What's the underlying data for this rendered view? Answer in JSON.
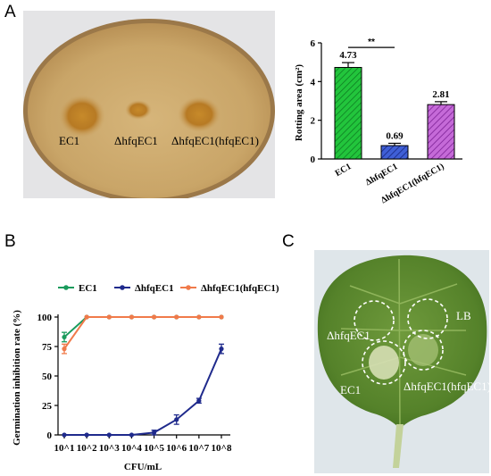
{
  "panels": {
    "a": "A",
    "b": "B",
    "c": "C"
  },
  "potato_labels": {
    "l1": "EC1",
    "l2": "ΔhfqEC1",
    "l3": "ΔhfqEC1(hfqEC1)"
  },
  "leaf_labels": {
    "lb": "LB",
    "l1": "ΔhfqEC1",
    "l2": "EC1",
    "l3": "ΔhfqEC1(hfqEC1)"
  },
  "colors": {
    "ec1_green": "#1a9b5c",
    "mutant_navy": "#1f2a8c",
    "complement_orange": "#f07a4a",
    "bar_green": "#22c53c",
    "bar_blue": "#3f5fd6",
    "bar_purple": "#b04ec9"
  },
  "chart_data": [
    {
      "type": "bar",
      "categories": [
        "EC1",
        "ΔhfqEC1",
        "ΔhfqEC1(hfqEC1)"
      ],
      "values": [
        4.73,
        0.69,
        2.81
      ],
      "errors": [
        0.25,
        0.12,
        0.15
      ],
      "data_labels": [
        "4.73",
        "0.69",
        "2.81"
      ],
      "ylabel": "Rotting area (cm²)",
      "ylim": [
        0,
        6
      ],
      "yticks": [
        0,
        2,
        4,
        6
      ],
      "significance": "**"
    },
    {
      "type": "line",
      "x": [
        "10^1",
        "10^2",
        "10^3",
        "10^4",
        "10^5",
        "10^6",
        "10^7",
        "10^8"
      ],
      "xlabel": "CFU/mL",
      "ylabel": "Germination inhibition rate (%)",
      "ylim": [
        0,
        100
      ],
      "yticks": [
        0,
        25,
        50,
        75,
        100
      ],
      "legend_position": "top",
      "series": [
        {
          "name": "EC1",
          "values": [
            83,
            100,
            100,
            100,
            100,
            100,
            100,
            100
          ],
          "errors": [
            4,
            0,
            0,
            0,
            0,
            0,
            0,
            0
          ]
        },
        {
          "name": "ΔhfqEC1",
          "values": [
            0,
            0,
            0,
            0,
            2,
            13,
            29,
            73
          ],
          "errors": [
            0,
            0,
            0,
            0,
            2,
            4,
            2,
            4
          ]
        },
        {
          "name": "ΔhfqEC1(hfqEC1)",
          "values": [
            73,
            100,
            100,
            100,
            100,
            100,
            100,
            100
          ],
          "errors": [
            4,
            0,
            0,
            0,
            0,
            0,
            0,
            0
          ]
        }
      ]
    }
  ]
}
